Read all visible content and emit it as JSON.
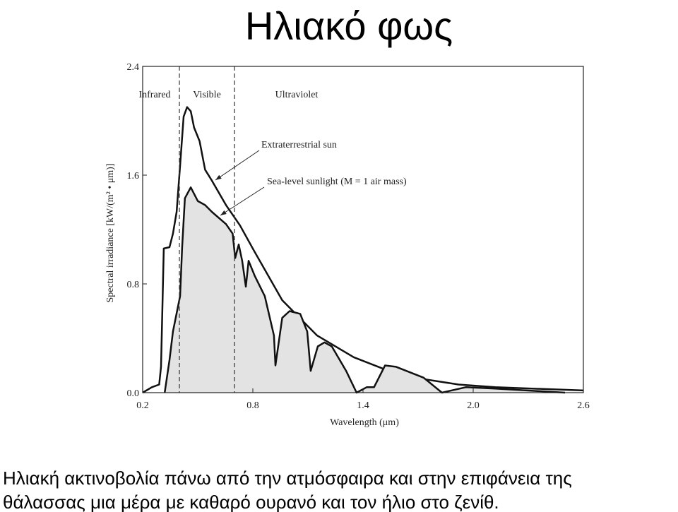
{
  "title": "Ηλιακό φως",
  "caption": [
    "Ηλιακή ακτινοβολία πάνω από την ατμόσφαιρα και στην επιφάνεια της",
    "θάλασσας μια μέρα με καθαρό ουρανό και τον ήλιο στο ζενίθ."
  ],
  "chart_data": {
    "type": "line",
    "xlabel": "Wavelength (μm)",
    "ylabel": "Spectral irradiance [kW/(m² • μm)]",
    "xlim": [
      0.2,
      2.6
    ],
    "ylim": [
      0,
      2.4
    ],
    "xticks": [
      0.2,
      0.8,
      1.4,
      {
        "value": 2,
        "label": "2.0"
      },
      2.6
    ],
    "yticks": [
      {
        "value": 0,
        "label": "0.0"
      },
      0.8,
      1.6,
      2.4
    ],
    "dividers": [
      0.4,
      0.7
    ],
    "regions": [
      "Infrared",
      "Visible",
      "Ultraviolet"
    ],
    "series": [
      {
        "name": "Extraterrestrial sun",
        "color": "#111111",
        "x": [
          0.2,
          0.25,
          0.29,
          0.3,
          0.315,
          0.346,
          0.365,
          0.385,
          0.404,
          0.423,
          0.442,
          0.462,
          0.48,
          0.51,
          0.54,
          0.577,
          0.654,
          0.73,
          0.808,
          0.96,
          1.15,
          1.35,
          1.54,
          1.73,
          1.92,
          2.12,
          2.6
        ],
        "values": [
          0,
          0.04,
          0.06,
          0.19,
          1.06,
          1.07,
          1.17,
          1.33,
          1.67,
          2.03,
          2.1,
          2.07,
          1.95,
          1.85,
          1.64,
          1.56,
          1.38,
          1.23,
          1.04,
          0.68,
          0.42,
          0.26,
          0.16,
          0.1,
          0.06,
          0.04,
          0.016
        ]
      },
      {
        "name": "Sea-level sunlight (M = 1 air mass)",
        "color": "#111111",
        "fill": "#e3e3e3",
        "x": [
          0.32,
          0.346,
          0.365,
          0.404,
          0.415,
          0.43,
          0.462,
          0.5,
          0.54,
          0.577,
          0.654,
          0.69,
          0.704,
          0.723,
          0.742,
          0.762,
          0.777,
          0.81,
          0.865,
          0.915,
          0.923,
          0.96,
          1.0,
          1.058,
          1.096,
          1.115,
          1.154,
          1.19,
          1.23,
          1.308,
          1.365,
          1.42,
          1.46,
          1.52,
          1.58,
          1.73,
          1.83,
          1.96,
          2.12,
          2.5
        ],
        "values": [
          0,
          0.24,
          0.45,
          0.71,
          1.07,
          1.43,
          1.51,
          1.41,
          1.38,
          1.33,
          1.24,
          1.17,
          0.99,
          1.09,
          0.97,
          0.78,
          0.97,
          0.86,
          0.71,
          0.42,
          0.2,
          0.55,
          0.6,
          0.58,
          0.45,
          0.16,
          0.34,
          0.37,
          0.34,
          0.16,
          0,
          0.04,
          0.04,
          0.2,
          0.19,
          0.11,
          0,
          0.04,
          0.03,
          0
        ]
      }
    ]
  }
}
